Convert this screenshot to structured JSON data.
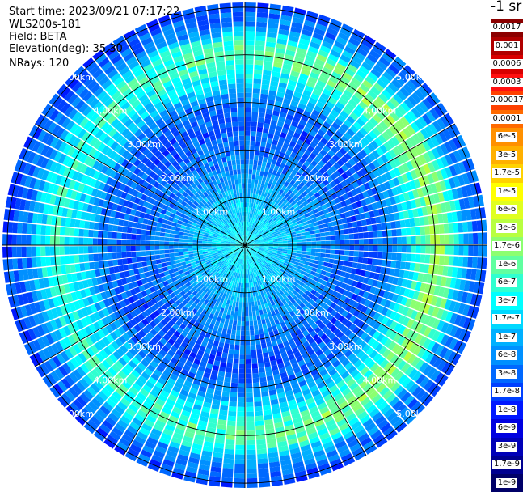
{
  "header": {
    "start_time": "Start time: 2023/09/21 07:17:22",
    "instrument": "WLS200s-181",
    "field": "Field: BETA",
    "elevation": "Elevation(deg): 35.30",
    "nrays": "NRays: 120"
  },
  "colorbar": {
    "title": "-1 sr",
    "labels": [
      "0.0017",
      "0.001",
      "0.0006",
      "0.0003",
      "0.00017",
      "0.0001",
      "6e-5",
      "3e-5",
      "1.7e-5",
      "1e-5",
      "6e-6",
      "3e-6",
      "1.7e-6",
      "1e-6",
      "6e-7",
      "3e-7",
      "1.7e-7",
      "1e-7",
      "6e-8",
      "3e-8",
      "1.7e-8",
      "1e-8",
      "6e-9",
      "3e-9",
      "1.7e-9",
      "1e-9"
    ],
    "colors": [
      "#8b0000",
      "#b00000",
      "#d80000",
      "#ff1010",
      "#ff4000",
      "#ff6a00",
      "#ff9000",
      "#ffb000",
      "#ffd200",
      "#ffff00",
      "#e0ff20",
      "#b8ff40",
      "#8cff70",
      "#60ffa0",
      "#30ffd0",
      "#00ffff",
      "#00d8ff",
      "#00b0ff",
      "#0090ff",
      "#0068ff",
      "#0040ff",
      "#0018ff",
      "#0000e0",
      "#0000b8",
      "#000090",
      "#000068"
    ]
  },
  "chart_data": {
    "type": "heatmap",
    "projection": "polar-ppi",
    "field": "BETA",
    "nrays": 120,
    "radial_unit": "km",
    "ring_labels": [
      "1.00km",
      "2.00km",
      "3.00km",
      "4.00km",
      "5.00km"
    ],
    "ring_km": [
      1,
      2,
      3,
      4,
      5
    ],
    "max_range_km": 5.1,
    "grid": true,
    "spokes_deg": [
      0,
      30,
      60,
      90,
      120,
      150,
      180,
      210,
      240,
      270,
      300,
      330
    ],
    "radial_profile": {
      "range_km": [
        0.0,
        0.5,
        1.0,
        1.5,
        2.0,
        2.5,
        3.0,
        3.5,
        4.0,
        4.3,
        4.6,
        5.0
      ],
      "beta_log10": [
        -6.5,
        -6.7,
        -6.9,
        -7.2,
        -7.4,
        -7.6,
        -7.4,
        -6.6,
        -6.0,
        -6.3,
        -7.2,
        -7.6
      ]
    }
  }
}
